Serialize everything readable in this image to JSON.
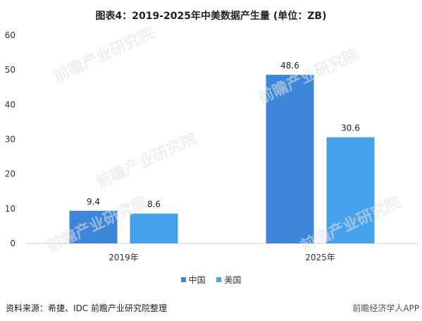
{
  "title": "图表4：2019-2025年中美数据产生量 (单位：ZB)",
  "source": "资料来源：希捷、IDC 前瞻产业研究院整理",
  "brand": "前瞻经济学人APP",
  "watermark": "前瞻产业研究院",
  "chart_data": {
    "type": "bar",
    "categories": [
      "2019年",
      "2025年"
    ],
    "series": [
      {
        "name": "中国",
        "values": [
          9.4,
          48.6
        ],
        "color": "#3d85d8"
      },
      {
        "name": "美国",
        "values": [
          8.6,
          30.6
        ],
        "color": "#46a2ea"
      }
    ],
    "ylim": [
      0,
      60
    ],
    "yticks": [
      0,
      10,
      20,
      30,
      40,
      50,
      60
    ],
    "grid": false,
    "legend": "bottom"
  }
}
